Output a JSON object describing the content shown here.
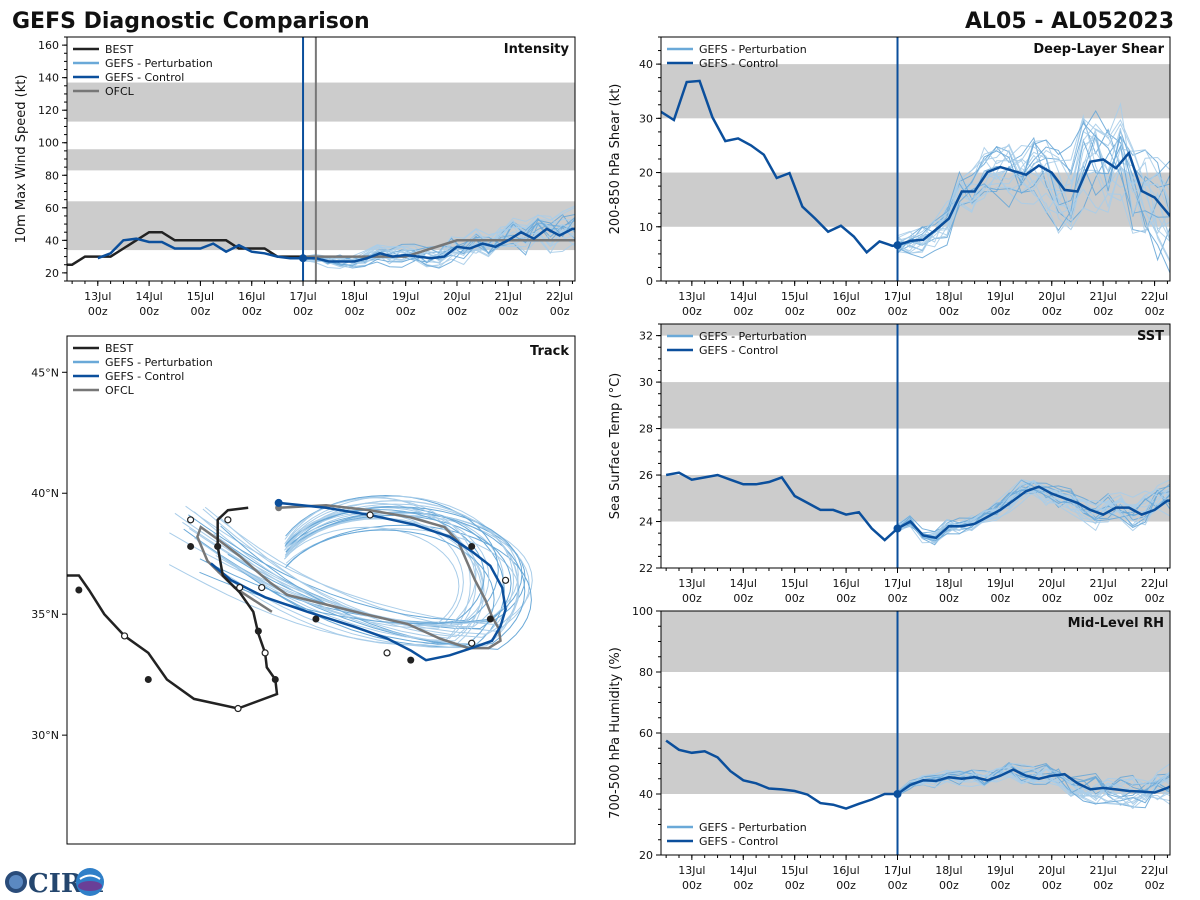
{
  "page": {
    "title_left": "GEFS Diagnostic Comparison",
    "title_right": "AL05 - AL052023",
    "logo_text": "CIRA"
  },
  "colors": {
    "best": "#222222",
    "ofcl": "#777777",
    "control": "#0b4f9c",
    "perturbation": "#6aa9d8",
    "perturbation_light": "#a9cde9",
    "band": "#cccccc",
    "vline": "#0b4f9c"
  },
  "legend_labels": {
    "best": "BEST",
    "perturbation": "GEFS - Perturbation",
    "control": "GEFS - Control",
    "ofcl": "OFCL"
  },
  "time_axis": {
    "min": -4.6,
    "max": 5.3,
    "ticks": [
      -4,
      -3,
      -2,
      -1,
      0,
      1,
      2,
      3,
      4,
      5
    ],
    "labels_day": [
      "13Jul",
      "14Jul",
      "15Jul",
      "16Jul",
      "17Jul",
      "18Jul",
      "19Jul",
      "20Jul",
      "21Jul",
      "22Jul"
    ],
    "labels_hour": [
      "00z",
      "00z",
      "00z",
      "00z",
      "00z",
      "00z",
      "00z",
      "00z",
      "00z",
      "00z"
    ],
    "minor_step": 0.25,
    "init_time": 0
  },
  "chart_data": [
    {
      "id": "intensity",
      "type": "line",
      "title": "Intensity",
      "ylabel": "10m Max Wind Speed (kt)",
      "ylim": [
        15,
        165
      ],
      "yticks": [
        20,
        40,
        60,
        80,
        100,
        120,
        140,
        160
      ],
      "bands": [
        [
          34,
          64
        ],
        [
          83,
          96
        ],
        [
          113,
          137
        ]
      ],
      "ofcl_line_x": 0.25,
      "legend": [
        "best",
        "perturbation",
        "control",
        "ofcl"
      ],
      "legend_loc": "upper-left",
      "best": {
        "x": [
          -4.75,
          -4.5,
          -4.25,
          -4.0,
          -3.75,
          -3.5,
          -3.25,
          -3.0,
          -2.75,
          -2.5,
          -2.25,
          -2.0,
          -1.75,
          -1.5,
          -1.25,
          -1.0,
          -0.75,
          -0.5,
          -0.25,
          0.0
        ],
        "y": [
          25,
          25,
          30,
          30,
          30,
          35,
          40,
          45,
          45,
          40,
          40,
          40,
          40,
          40,
          35,
          35,
          35,
          30,
          30,
          30
        ]
      },
      "ofcl": {
        "x": [
          0.0,
          0.25,
          0.5,
          1.0,
          1.5,
          2.0,
          2.5,
          3.0,
          4.0,
          5.0,
          5.3
        ],
        "y": [
          30,
          30,
          30,
          30,
          30,
          30,
          35,
          40,
          40,
          40,
          40
        ]
      },
      "control": {
        "x": [
          -4.0,
          -3.75,
          -3.5,
          -3.25,
          -3.0,
          -2.75,
          -2.5,
          -2.25,
          -2.0,
          -1.75,
          -1.5,
          -1.25,
          -1.0,
          -0.75,
          -0.5,
          -0.25,
          0.0,
          0.25,
          0.5,
          0.75,
          1.0,
          1.25,
          1.5,
          1.75,
          2.0,
          2.25,
          2.5,
          2.75,
          3.0,
          3.25,
          3.5,
          3.75,
          4.0,
          4.25,
          4.5,
          4.75,
          5.0,
          5.25,
          5.3
        ],
        "y": [
          29,
          32,
          40,
          41,
          39,
          39,
          35,
          35,
          35,
          38,
          33,
          37,
          33,
          32,
          30,
          29,
          29,
          29,
          27,
          27,
          27,
          29,
          32,
          30,
          31,
          30,
          29,
          30,
          36,
          35,
          38,
          36,
          40,
          45,
          41,
          47,
          43,
          47,
          47
        ]
      },
      "perturbation_spread": {
        "start": 0.0,
        "end": 5.3,
        "count": 20,
        "center": [
          30,
          31,
          32,
          33,
          34,
          36,
          38,
          39,
          40,
          41
        ],
        "spread_start": 2,
        "spread_end": 9
      }
    },
    {
      "id": "shear",
      "type": "line",
      "title": "Deep-Layer Shear",
      "ylabel": "200-850 hPa Shear (kt)",
      "ylim": [
        0,
        45
      ],
      "yticks": [
        0,
        10,
        20,
        30,
        40
      ],
      "bands": [
        [
          10,
          20
        ],
        [
          30,
          40
        ]
      ],
      "legend": [
        "perturbation",
        "control"
      ],
      "legend_loc": "upper-left",
      "control": {
        "x": [
          -4.6,
          -4.35,
          -4.1,
          -3.85,
          -3.6,
          -3.35,
          -3.1,
          -2.85,
          -2.6,
          -2.35,
          -2.1,
          -1.85,
          -1.6,
          -1.35,
          -1.1,
          -0.85,
          -0.6,
          -0.35,
          -0.1,
          0.0,
          0.25,
          0.5,
          0.75,
          1.0,
          1.25,
          1.5,
          1.75,
          2.0,
          2.25,
          2.5,
          2.75,
          3.0,
          3.25,
          3.5,
          3.75,
          4.0,
          4.25,
          4.5,
          4.75,
          5.0,
          5.25,
          5.3
        ],
        "y": [
          31.2,
          29.7,
          36.7,
          36.9,
          30.2,
          25.8,
          26.3,
          25.0,
          23.3,
          19.0,
          19.9,
          13.7,
          11.5,
          9.1,
          10.2,
          8.2,
          5.3,
          7.3,
          6.5,
          6.6,
          7.4,
          7.6,
          9.5,
          11.5,
          16.5,
          16.5,
          20.1,
          21.0,
          20.3,
          19.6,
          21.3,
          20.0,
          16.8,
          16.5,
          22.0,
          22.4,
          20.8,
          23.6,
          16.6,
          15.4,
          12.6,
          12.0
        ]
      },
      "perturbation_spread": {
        "start": 0.0,
        "end": 5.3,
        "count": 20,
        "center": [
          6.6,
          8.5,
          13,
          18,
          21,
          20,
          19,
          18,
          18,
          16
        ],
        "spread_start": 2,
        "spread_end": 8
      }
    },
    {
      "id": "sst",
      "type": "line",
      "title": "SST",
      "ylabel": "Sea Surface Temp (°C)",
      "ylim": [
        22,
        32.5
      ],
      "yticks": [
        22,
        24,
        26,
        28,
        30,
        32
      ],
      "bands": [
        [
          24,
          26
        ],
        [
          28,
          30
        ],
        [
          32,
          34
        ]
      ],
      "legend": [
        "perturbation",
        "control"
      ],
      "legend_loc": "upper-left",
      "control": {
        "x": [
          -4.5,
          -4.25,
          -4.0,
          -3.75,
          -3.5,
          -3.25,
          -3.0,
          -2.75,
          -2.5,
          -2.25,
          -2.0,
          -1.75,
          -1.5,
          -1.25,
          -1.0,
          -0.75,
          -0.5,
          -0.25,
          0.0,
          0.25,
          0.5,
          0.75,
          1.0,
          1.25,
          1.5,
          1.75,
          2.0,
          2.25,
          2.5,
          2.75,
          3.0,
          3.25,
          3.5,
          3.75,
          4.0,
          4.25,
          4.5,
          4.75,
          5.0,
          5.25,
          5.3
        ],
        "y": [
          26.0,
          26.1,
          25.8,
          25.9,
          26.0,
          25.8,
          25.6,
          25.6,
          25.7,
          25.9,
          25.1,
          24.8,
          24.5,
          24.5,
          24.3,
          24.4,
          23.7,
          23.2,
          23.7,
          24.0,
          23.4,
          23.3,
          23.8,
          23.8,
          23.9,
          24.2,
          24.5,
          24.9,
          25.3,
          25.5,
          25.2,
          25.0,
          24.8,
          24.5,
          24.3,
          24.6,
          24.6,
          24.3,
          24.5,
          24.9,
          24.9
        ]
      },
      "perturbation_spread": {
        "start": 0.0,
        "end": 5.3,
        "count": 20,
        "center": [
          23.7,
          23.6,
          23.8,
          24.2,
          24.9,
          25.0,
          24.7,
          24.4,
          24.3,
          24.4
        ],
        "spread_start": 0.2,
        "spread_end": 0.6
      }
    },
    {
      "id": "rh",
      "type": "line",
      "title": "Mid-Level RH",
      "ylabel": "700-500 hPa Humidity (%)",
      "ylim": [
        20,
        100
      ],
      "yticks": [
        20,
        40,
        60,
        80,
        100
      ],
      "bands": [
        [
          40,
          60
        ],
        [
          80,
          100
        ]
      ],
      "legend": [
        "perturbation",
        "control"
      ],
      "legend_loc": "lower-left",
      "control": {
        "x": [
          -4.5,
          -4.25,
          -4.0,
          -3.75,
          -3.5,
          -3.25,
          -3.0,
          -2.75,
          -2.5,
          -2.25,
          -2.0,
          -1.75,
          -1.5,
          -1.25,
          -1.0,
          -0.75,
          -0.5,
          -0.25,
          0.0,
          0.25,
          0.5,
          0.75,
          1.0,
          1.25,
          1.5,
          1.75,
          2.0,
          2.25,
          2.5,
          2.75,
          3.0,
          3.25,
          3.5,
          3.75,
          4.0,
          4.25,
          4.5,
          4.75,
          5.0,
          5.25,
          5.3
        ],
        "y": [
          57.5,
          54.5,
          53.5,
          54.0,
          52.0,
          47.5,
          44.5,
          43.5,
          41.8,
          41.5,
          41.0,
          39.8,
          37.0,
          36.5,
          35.2,
          36.8,
          38.2,
          40.0,
          40.0,
          43.0,
          44.5,
          44.3,
          45.5,
          45.0,
          45.5,
          44.5,
          46.0,
          48.0,
          46.0,
          45.0,
          46.0,
          46.5,
          43.5,
          41.5,
          42.0,
          41.5,
          41.0,
          40.8,
          40.5,
          42.0,
          42.5
        ]
      },
      "perturbation_spread": {
        "start": 0.0,
        "end": 5.3,
        "count": 20,
        "center": [
          40,
          44,
          45,
          45,
          47,
          47,
          45,
          43,
          42,
          43
        ],
        "spread_start": 1,
        "spread_end": 5
      }
    },
    {
      "id": "track",
      "type": "line",
      "title": "Track",
      "ylabel": "",
      "lat_range": [
        25.5,
        46.5
      ],
      "lon_range": [
        -56.5,
        -26.5
      ],
      "lat_ticks": [
        30,
        35,
        40,
        45
      ],
      "lat_tick_labels": [
        "30°N",
        "35°N",
        "40°N",
        "45°N"
      ],
      "legend": [
        "best",
        "perturbation",
        "control",
        "ofcl"
      ],
      "legend_loc": "upper-left",
      "best": {
        "lon": [
          -56.5,
          -55.8,
          -55.2,
          -54.3,
          -53.1,
          -51.7,
          -50.6,
          -49.0,
          -46.4,
          -44.1,
          -44.2,
          -44.7,
          -44.8,
          -45.2,
          -45.5,
          -46.3,
          -47.3,
          -47.6,
          -47.6,
          -47.0,
          -45.8
        ],
        "lat": [
          36.6,
          36.6,
          36.0,
          35.0,
          34.1,
          33.4,
          32.3,
          31.5,
          31.1,
          31.7,
          32.3,
          32.8,
          33.4,
          34.2,
          35.1,
          35.9,
          36.6,
          37.8,
          38.9,
          39.3,
          39.4
        ]
      },
      "best_filled": [
        [
          -55.8,
          36.0
        ],
        [
          -51.7,
          32.3
        ],
        [
          -44.2,
          32.3
        ],
        [
          -45.2,
          34.3
        ],
        [
          -47.6,
          37.8
        ],
        [
          -49.2,
          37.8
        ]
      ],
      "best_open": [
        [
          -53.1,
          34.1
        ],
        [
          -46.4,
          31.1
        ],
        [
          -44.8,
          33.4
        ],
        [
          -46.3,
          36.1
        ],
        [
          -47.0,
          38.9
        ]
      ],
      "ofcl": {
        "lon": [
          -44.0,
          -41.2,
          -38.6,
          -36.2,
          -34.2,
          -33.4,
          -32.9,
          -32.4,
          -31.8,
          -31.4,
          -31.0,
          -30.9,
          -31.6,
          -32.8,
          -34.5,
          -36.4,
          -38.9,
          -41.2,
          -43.5,
          -44.5,
          -45.5,
          -46.3,
          -47.6,
          -48.6,
          -48.8,
          -48.2,
          -46.6,
          -44.4
        ],
        "lat": [
          39.4,
          39.5,
          39.3,
          39.0,
          38.6,
          38.0,
          37.2,
          36.4,
          35.6,
          34.9,
          34.4,
          33.9,
          33.6,
          33.6,
          34.0,
          34.6,
          35.0,
          35.4,
          35.8,
          36.3,
          36.9,
          37.4,
          38.1,
          38.6,
          38.2,
          37.2,
          36.1,
          35.1
        ]
      },
      "ofcl_dots": [
        [
          -44.0,
          39.4
        ]
      ],
      "control": {
        "lon": [
          -44.0,
          -41.2,
          -38.6,
          -36.0,
          -33.9,
          -32.6,
          -31.5,
          -30.8,
          -30.6,
          -30.9,
          -31.4,
          -32.6,
          -33.9,
          -35.3,
          -36.2,
          -37.6,
          -39.6,
          -42.3,
          -44.8,
          -46.8,
          -48.0
        ],
        "lat": [
          39.6,
          39.4,
          39.1,
          38.7,
          38.2,
          37.6,
          37.0,
          36.1,
          35.2,
          34.5,
          33.9,
          33.6,
          33.3,
          33.1,
          33.5,
          34.0,
          34.5,
          35.1,
          35.7,
          36.4,
          37.1
        ]
      },
      "control_dots_filled": [
        [
          -44.0,
          39.6
        ],
        [
          -32.6,
          37.8
        ],
        [
          -31.5,
          34.8
        ],
        [
          -36.2,
          33.1
        ],
        [
          -41.8,
          34.8
        ],
        [
          -47.6,
          37.8
        ]
      ],
      "control_dots_open": [
        [
          -38.6,
          39.1
        ],
        [
          -30.6,
          36.4
        ],
        [
          -32.6,
          33.8
        ],
        [
          -37.6,
          33.4
        ],
        [
          -45.0,
          36.1
        ],
        [
          -49.2,
          38.9
        ]
      ],
      "perturbation_count": 26
    }
  ]
}
